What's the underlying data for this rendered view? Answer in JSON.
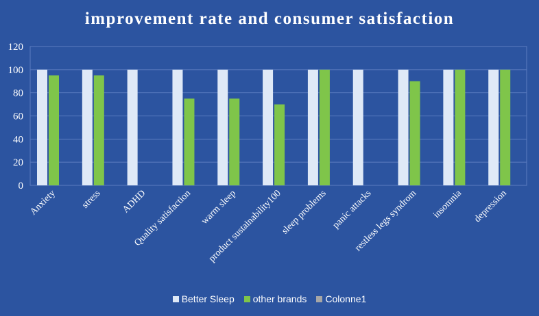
{
  "chart_data": {
    "type": "bar",
    "title": "improvement rate and consumer satisfaction",
    "xlabel": "",
    "ylabel": "",
    "ylim": [
      0,
      120
    ],
    "yticks": [
      0,
      20,
      40,
      60,
      80,
      100,
      120
    ],
    "grid": true,
    "legend_position": "bottom",
    "categories": [
      "Anxiety",
      "stress",
      "ADHD",
      "Quality satisfaction",
      "warm sleep",
      "product sustainability100",
      "sleep problems",
      "panic attacks",
      "restless legs syndrom",
      "insomnia",
      "depression"
    ],
    "series": [
      {
        "name": "Better Sleep",
        "color": "#dfe9f7",
        "values": [
          100,
          100,
          100,
          100,
          100,
          100,
          100,
          100,
          100,
          100,
          100
        ]
      },
      {
        "name": "other brands",
        "color": "#7fc54a",
        "values": [
          95,
          95,
          null,
          75,
          75,
          70,
          100,
          null,
          90,
          100,
          100
        ]
      },
      {
        "name": "Colonne1",
        "color": "#a6a6a6",
        "values": [
          null,
          null,
          null,
          null,
          null,
          null,
          null,
          null,
          null,
          null,
          null
        ]
      }
    ]
  },
  "colors": {
    "background": "#2c54a0",
    "gridline": "#5b7cc0",
    "text": "#ffffff"
  }
}
